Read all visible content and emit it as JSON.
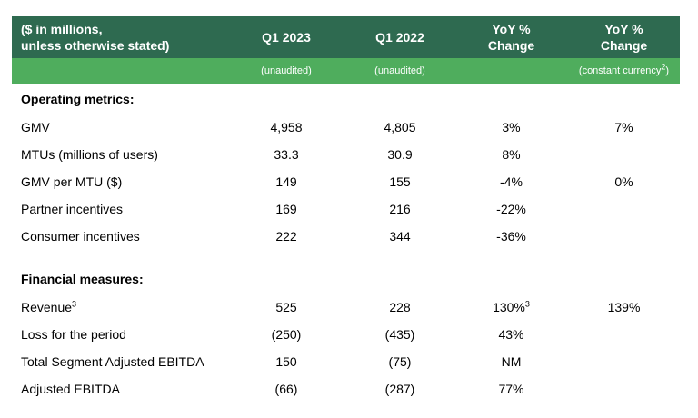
{
  "colors": {
    "header_dark_green": "#2E6A50",
    "header_light_green": "#4FAD5D",
    "header_text": "#FFFFFF",
    "body_text": "#000000"
  },
  "table": {
    "header": {
      "metric_label_line1": "($ in millions,",
      "metric_label_line2": "unless otherwise stated)",
      "col_q1_2023": "Q1 2023",
      "col_q1_2022": "Q1 2022",
      "col_yoy_line1": "YoY %",
      "col_yoy_line2": "Change",
      "col_yoy_cc_line1": "YoY %",
      "col_yoy_cc_line2": "Change"
    },
    "subheader": {
      "q1_2023_note": "(unaudited)",
      "q1_2022_note": "(unaudited)",
      "yoy_note": "",
      "yoy_cc_note_pre": "(constant currency",
      "yoy_cc_note_sup": "2",
      "yoy_cc_note_post": ")"
    },
    "sections": [
      {
        "title": "Operating metrics:",
        "rows": [
          {
            "label": "GMV",
            "q1_2023": "4,958",
            "q1_2022": "4,805",
            "yoy": "3%",
            "yoy_cc": "7%"
          },
          {
            "label": "MTUs (millions of users)",
            "q1_2023": "33.3",
            "q1_2022": "30.9",
            "yoy": "8%",
            "yoy_cc": ""
          },
          {
            "label": "GMV per MTU ($)",
            "q1_2023": "149",
            "q1_2022": "155",
            "yoy": "-4%",
            "yoy_cc": "0%"
          },
          {
            "label": "Partner incentives",
            "q1_2023": "169",
            "q1_2022": "216",
            "yoy": "-22%",
            "yoy_cc": ""
          },
          {
            "label": "Consumer incentives",
            "q1_2023": "222",
            "q1_2022": "344",
            "yoy": "-36%",
            "yoy_cc": ""
          }
        ]
      },
      {
        "title": "Financial measures:",
        "rows": [
          {
            "label": "Revenue",
            "label_sup": "3",
            "q1_2023": "525",
            "q1_2022": "228",
            "yoy": "130%",
            "yoy_sup": "3",
            "yoy_cc": "139%"
          },
          {
            "label": "Loss for the period",
            "q1_2023": "(250)",
            "q1_2022": "(435)",
            "yoy": "43%",
            "yoy_cc": ""
          },
          {
            "label": "Total Segment Adjusted EBITDA",
            "q1_2023": "150",
            "q1_2022": "(75)",
            "yoy": "NM",
            "yoy_cc": ""
          },
          {
            "label": "Adjusted EBITDA",
            "q1_2023": "(66)",
            "q1_2022": "(287)",
            "yoy": "77%",
            "yoy_cc": ""
          }
        ]
      }
    ]
  }
}
